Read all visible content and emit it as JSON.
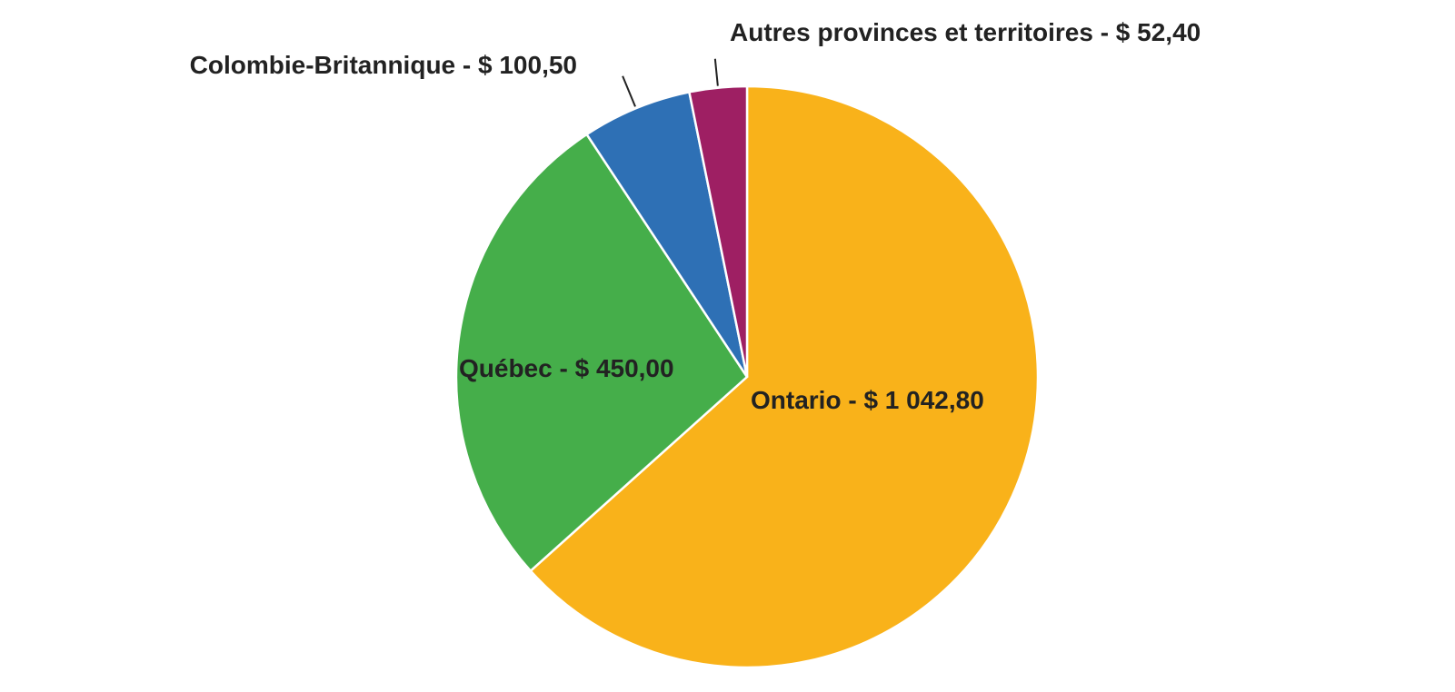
{
  "chart_data": {
    "type": "pie",
    "title": "",
    "categories": [
      "Ontario",
      "Québec",
      "Colombie-Britannique",
      "Autres provinces et territoires"
    ],
    "values": [
      1042.8,
      450.0,
      100.5,
      52.4
    ],
    "labels": [
      "Ontario -  $ 1 042,80",
      "Québec -  $ 450,00",
      "Colombie-Britannique -  $ 100,50",
      "Autres provinces et territoires -  $ 52,40"
    ],
    "colors": [
      "#F9B21A",
      "#45AE4A",
      "#2E70B5",
      "#9E1F63"
    ],
    "start_angle": "12 o'clock",
    "direction": "clockwise",
    "legend": "none"
  }
}
